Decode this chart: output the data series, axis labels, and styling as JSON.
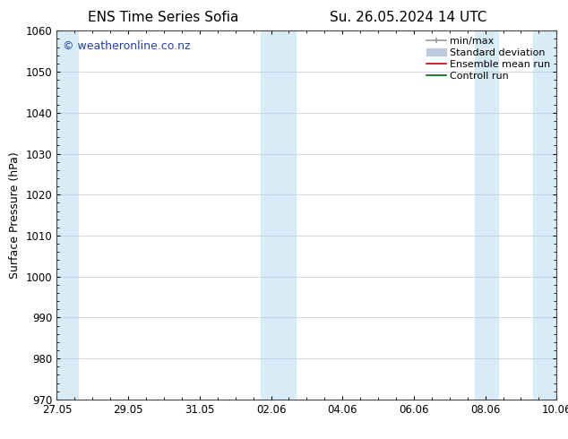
{
  "title_left": "ENS Time Series Sofia",
  "title_right": "Su. 26.05.2024 14 UTC",
  "ylabel": "Surface Pressure (hPa)",
  "ylim": [
    970,
    1060
  ],
  "yticks": [
    970,
    980,
    990,
    1000,
    1010,
    1020,
    1030,
    1040,
    1050,
    1060
  ],
  "xtick_labels": [
    "27.05",
    "29.05",
    "31.05",
    "02.06",
    "04.06",
    "06.06",
    "08.06",
    "10.06"
  ],
  "xtick_positions": [
    0,
    2,
    4,
    6,
    8,
    10,
    12,
    14
  ],
  "x_total": 14,
  "shaded_bands": [
    {
      "x_start": 0.0,
      "x_end": 0.6,
      "color": "#d8ecf8"
    },
    {
      "x_start": 5.7,
      "x_end": 6.7,
      "color": "#d8ecf8"
    },
    {
      "x_start": 11.7,
      "x_end": 12.35,
      "color": "#d8ecf8"
    },
    {
      "x_start": 13.35,
      "x_end": 14.0,
      "color": "#d8ecf8"
    }
  ],
  "watermark_text": "© weatheronline.co.nz",
  "watermark_color": "#2244aa",
  "background_color": "#ffffff",
  "plot_bg_color": "#ffffff",
  "grid_color": "#bbccdd",
  "legend_items": [
    {
      "label": "min/max",
      "color": "#999999",
      "linewidth": 1.2
    },
    {
      "label": "Standard deviation",
      "color": "#bbccdd",
      "linewidth": 7
    },
    {
      "label": "Ensemble mean run",
      "color": "#cc0000",
      "linewidth": 1.2
    },
    {
      "label": "Controll run",
      "color": "#006600",
      "linewidth": 1.2
    }
  ],
  "title_fontsize": 11,
  "label_fontsize": 9,
  "tick_fontsize": 8.5,
  "watermark_fontsize": 9,
  "legend_fontsize": 8
}
